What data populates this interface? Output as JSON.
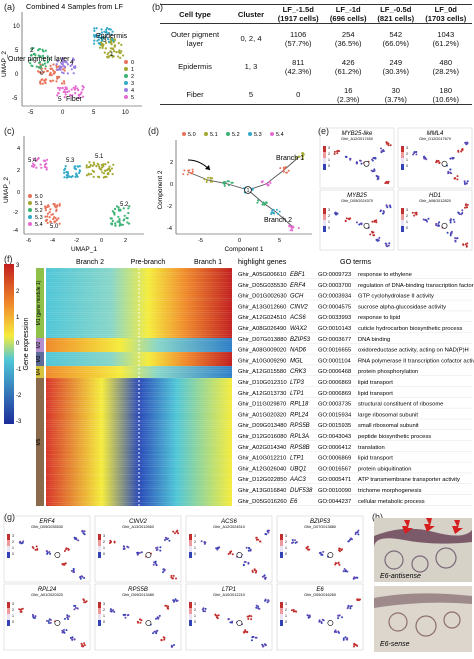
{
  "panels": {
    "a": "(a)",
    "b": "(b)",
    "c": "(c)",
    "d": "(d)",
    "e": "(e)",
    "f": "(f)",
    "g": "(g)",
    "h": "(h)"
  },
  "umap_a": {
    "title": "Combined 4 Samples from LF",
    "ylabel": "UMAP_2",
    "xticks": [
      "-5",
      "0",
      "5",
      "10"
    ],
    "yticks": [
      "10",
      "5",
      "0",
      "-5"
    ],
    "annotations": [
      "Epidermis",
      "Outer pigment layer",
      "Fiber"
    ],
    "cluster_numbers": [
      "0",
      "1",
      "2",
      "3",
      "4",
      "5"
    ],
    "legend": [
      "0",
      "1",
      "2",
      "3",
      "4",
      "5"
    ],
    "colors": [
      "#e8735a",
      "#a3a831",
      "#3bb273",
      "#30a9c9",
      "#9b7fe0",
      "#e66bd0"
    ]
  },
  "table_b": {
    "headers": [
      "Cell type",
      "Cluster",
      "LF_-1.5d\n(1917 cells)",
      "LF_-1d\n(696 cells)",
      "LF_-0.5d\n(821 cells)",
      "LF_0d\n(1703 cells)"
    ],
    "h": [
      {
        "l1": "Cell type",
        "l2": ""
      },
      {
        "l1": "Cluster",
        "l2": ""
      },
      {
        "l1": "LF_-1.5d",
        "l2": "(1917 cells)"
      },
      {
        "l1": "LF_-1d",
        "l2": "(696 cells)"
      },
      {
        "l1": "LF_-0.5d",
        "l2": "(821 cells)"
      },
      {
        "l1": "LF_0d",
        "l2": "(1703 cells)"
      }
    ],
    "rows": [
      {
        "type": "Outer pigment",
        "type2": "layer",
        "cluster": "0, 2, 4",
        "v": [
          "1106",
          "254",
          "542",
          "1043"
        ],
        "p": [
          "(57.7%)",
          "(36.5%)",
          "(66.0%)",
          "(61.2%)"
        ]
      },
      {
        "type": "Epidermis",
        "type2": "",
        "cluster": "1, 3",
        "v": [
          "811",
          "426",
          "249",
          "480"
        ],
        "p": [
          "(42.3%)",
          "(61.2%)",
          "(30.3%)",
          "(28.2%)"
        ]
      },
      {
        "type": "Fiber",
        "type2": "",
        "cluster": "5",
        "v": [
          "0",
          "16",
          "30",
          "180"
        ],
        "p": [
          "",
          "(2.3%)",
          "(3.7%)",
          "(10.6%)"
        ]
      }
    ]
  },
  "umap_c": {
    "ylabel": "UMAP_2",
    "xlabel": "UMAP_1",
    "xticks": [
      "-6",
      "-4",
      "-2",
      "0",
      "2"
    ],
    "yticks": [
      "4",
      "2",
      "0",
      "-2",
      "-4"
    ],
    "labels": [
      "5.0",
      "5.1",
      "5.3",
      "5.2",
      "5.4"
    ],
    "legend": [
      "5.0",
      "5.1",
      "5.2",
      "5.3",
      "5.4"
    ],
    "colors": [
      "#e8735a",
      "#a3a831",
      "#3bb273",
      "#30a9c9",
      "#e66bd0"
    ]
  },
  "traj_d": {
    "ylabel": "Component 2",
    "xlabel": "Component 1",
    "legend": [
      "5.0",
      "5.1",
      "5.2",
      "5.3",
      "5.4"
    ],
    "branch1": "Branch 1",
    "branch2": "Branch 2",
    "xticks": [
      "-5",
      "0",
      "5"
    ],
    "yticks": [
      "2",
      "0",
      "-2",
      "-4"
    ],
    "node": "1"
  },
  "genes_e": [
    {
      "name": "MYB25-like",
      "id": "Ghir_A12G017450"
    },
    {
      "name": "MML4",
      "id": "Ghir_D12G017670"
    },
    {
      "name": "MYB25",
      "id": "Ghir_D05G024370"
    },
    {
      "name": "HD1",
      "id": "Ghir_A06G012820"
    }
  ],
  "heatmap_f": {
    "cbar_label": "Gene expression",
    "cbar_ticks": [
      "3",
      "2",
      "1",
      "0",
      "-1",
      "-2",
      "-3"
    ],
    "col_labels": [
      "Branch 2",
      "Pre-branch",
      "Branch 1"
    ],
    "col_hl": "highlight genes",
    "col_go": "GO terms",
    "modules": [
      "M1 (gene module 1)",
      "M2",
      "M3",
      "M4",
      "M5"
    ],
    "module_short": [
      "M1 (gene module 1)",
      "M2",
      "M3",
      "M4",
      "M5"
    ],
    "rows": [
      {
        "id": "Ghir_A05G006610",
        "g": "EBF1",
        "go": "GO:0009723",
        "t": "response to ethylene"
      },
      {
        "id": "Ghir_D05G035530",
        "g": "ERF4",
        "go": "GO:0003700",
        "t": "regulation of DNA-binding transcription factor activity"
      },
      {
        "id": "Ghir_D01G002630",
        "g": "GCH",
        "go": "GO:0003934",
        "t": "GTP cyclohydrolase II activity"
      },
      {
        "id": "Ghir_A13G012660",
        "g": "CINV2",
        "go": "GO:0004575",
        "t": "sucrose alpha-glucosidase activity"
      },
      {
        "id": "Ghir_A12G024510",
        "g": "ACS6",
        "go": "GO:0033993",
        "t": "response to lipid"
      },
      {
        "id": "Ghir_A08G026490",
        "g": "WAX2",
        "go": "GO:0010143",
        "t": "cuticle hydrocarbon biosynthetic process"
      },
      {
        "id": "Ghir_D07G013880",
        "g": "BZIP53",
        "go": "GO:0003677",
        "t": "DNA binding"
      },
      {
        "id": "Ghir_A08G009020",
        "g": "NAD6",
        "go": "GO:0016655",
        "t": "oxidoreductase activity, acting on NAD(P)H"
      },
      {
        "id": "Ghir_A10G009290",
        "g": "MGL",
        "go": "GO:0001104",
        "t": "RNA polymerase II transcription cofactor activity"
      },
      {
        "id": "Ghir_A12G015580",
        "g": "CRK3",
        "go": "GO:0006468",
        "t": "protein phosphorylation"
      },
      {
        "id": "Ghir_D10G012310",
        "g": "LTP3",
        "go": "GO:0006869",
        "t": "lipid transport"
      },
      {
        "id": "Ghir_A12G013730",
        "g": "LTP1",
        "go": "GO:0006869",
        "t": "lipid transport"
      },
      {
        "id": "Ghir_D11G029870",
        "g": "RPL18",
        "go": "GO:0003735",
        "t": "structural constituent of ribosome"
      },
      {
        "id": "Ghir_A01G020320",
        "g": "RPL24",
        "go": "GO:0015934",
        "t": "large ribosomal subunit"
      },
      {
        "id": "Ghir_D09G013480",
        "g": "RPS5B",
        "go": "GO:0015935",
        "t": "small ribosomal subunit"
      },
      {
        "id": "Ghir_D12G016080",
        "g": "RPL3A",
        "go": "GO:0043043",
        "t": "peptide biosynthetic process"
      },
      {
        "id": "Ghir_A02G014340",
        "g": "RPS8B",
        "go": "GO:0006412",
        "t": "translation"
      },
      {
        "id": "Ghir_A10G012210",
        "g": "LTP1",
        "go": "GO:0006869",
        "t": "lipid transport"
      },
      {
        "id": "Ghir_A12G026040",
        "g": "UBQ1",
        "go": "GO:0016567",
        "t": "protein ubiquitination"
      },
      {
        "id": "Ghir_D12G022850",
        "g": "AAC3",
        "go": "GO:0005471",
        "t": "ATP transmembrane transporter activity"
      },
      {
        "id": "Ghir_A13G016840",
        "g": "DUF538",
        "go": "GO:0010090",
        "t": "trichome morphogenesis"
      },
      {
        "id": "Ghir_D05G016260",
        "g": "E6",
        "go": "GO:0044237",
        "t": "cellular metabolic process"
      }
    ]
  },
  "genes_g": [
    {
      "name": "ERF4",
      "id": "Ghir_D05G035530"
    },
    {
      "name": "CINV2",
      "id": "Ghir_A13G012660"
    },
    {
      "name": "ACS6",
      "id": "Ghir_A12G024510"
    },
    {
      "name": "BZIP53",
      "id": "Ghir_D07G013880"
    },
    {
      "name": "RPL24",
      "id": "Ghir_A01G020320"
    },
    {
      "name": "RPS5B",
      "id": "Ghir_D09G013480"
    },
    {
      "name": "LTP1",
      "id": "Ghir_A10G012210"
    },
    {
      "name": "E6",
      "id": "Ghir_D05G016260"
    }
  ],
  "mini_cbar_ticks": [
    "3",
    "2",
    "1",
    "0"
  ],
  "hist_h": {
    "top": "E6-antisense",
    "bottom": "E6-sense"
  }
}
